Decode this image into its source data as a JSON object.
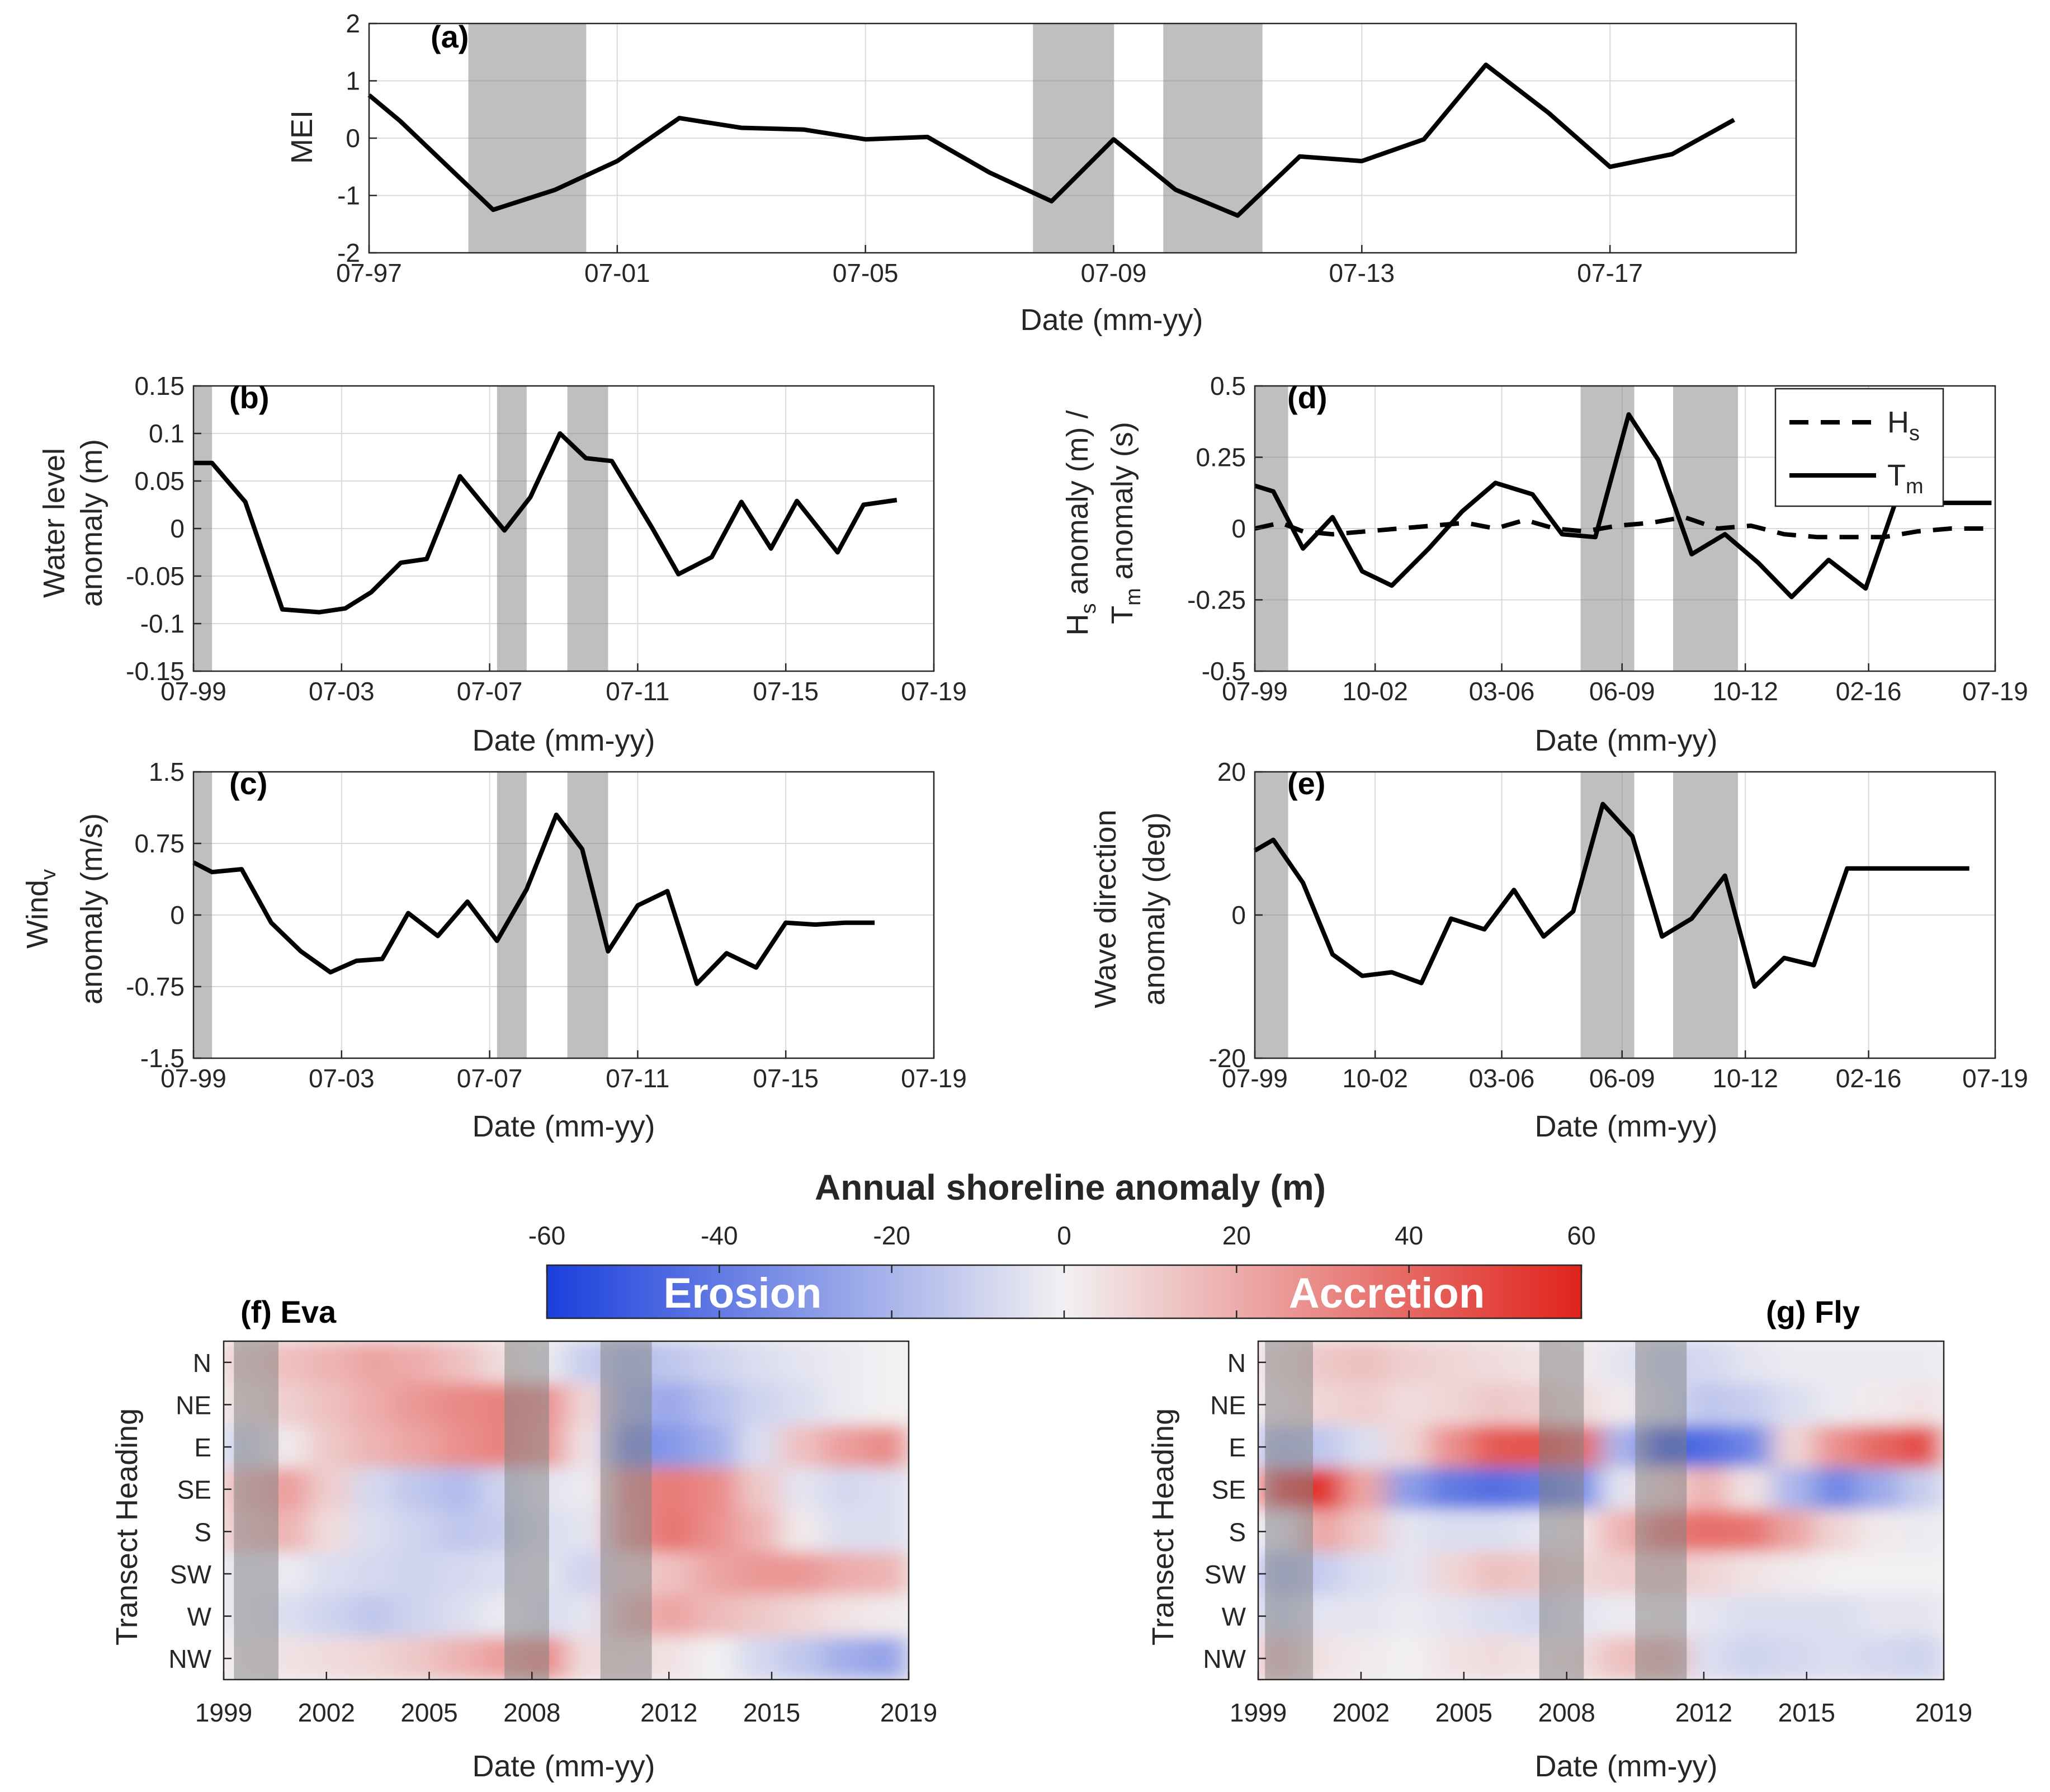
{
  "colors": {
    "line": "#000000",
    "shade": "#7f7f7f",
    "neg": "#1a3fdc",
    "pos": "#e0231b",
    "grid": "#d9d9d9"
  },
  "chart_data": [
    {
      "id": "a",
      "panel_label": "(a)",
      "type": "line",
      "title": "",
      "xlabel": "Date (mm-yy)",
      "ylabel": "MEI",
      "xlim": [
        1997.5,
        2020.5
      ],
      "ylim": [
        -2,
        2
      ],
      "xticks": [
        1997.5,
        2001.5,
        2005.5,
        2009.5,
        2013.5,
        2017.5
      ],
      "xticklabels": [
        "07-97",
        "07-01",
        "07-05",
        "07-09",
        "07-13",
        "07-17"
      ],
      "yticks": [
        -2,
        -1,
        0,
        1,
        2
      ],
      "yticklabels": [
        "-2",
        "-1",
        "0",
        "1",
        "2"
      ],
      "grid": true,
      "shade": [
        [
          1999.1,
          2001.0
        ],
        [
          2008.2,
          2009.5
        ],
        [
          2010.3,
          2011.9
        ]
      ],
      "series": [
        {
          "name": "MEI",
          "x": [
            1997.5,
            1998.0,
            1999.5,
            2000.5,
            2001.0,
            2001.5,
            2002.5,
            2003.5,
            2004.5,
            2005.5,
            2006.5,
            2007.5,
            2008.5,
            2009.5,
            2010.5,
            2011.5,
            2012.5,
            2013.5,
            2014.5,
            2015.5,
            2016.5,
            2017.5,
            2018.5,
            2019.5
          ],
          "y": [
            0.75,
            0.3,
            -1.25,
            -0.9,
            -0.65,
            -0.4,
            0.35,
            0.18,
            0.15,
            -0.02,
            0.02,
            -0.6,
            -1.1,
            -0.02,
            -0.9,
            -1.35,
            -0.32,
            -0.4,
            -0.02,
            1.28,
            0.45,
            -0.5,
            -0.28,
            0.32
          ]
        }
      ]
    },
    {
      "id": "b",
      "panel_label": "(b)",
      "type": "line",
      "title": "",
      "xlabel": "Date (mm-yy)",
      "ylabel": [
        "Water level",
        "anomaly (m)"
      ],
      "xlim": [
        1999.5,
        2019.5
      ],
      "ylim": [
        -0.15,
        0.15
      ],
      "xticks": [
        1999.5,
        2003.5,
        2007.5,
        2011.5,
        2015.5,
        2019.5
      ],
      "xticklabels": [
        "07-99",
        "07-03",
        "07-07",
        "07-11",
        "07-15",
        "07-19"
      ],
      "yticks": [
        -0.15,
        -0.1,
        -0.05,
        0,
        0.05,
        0.1,
        0.15
      ],
      "yticklabels": [
        "-0.15",
        "-0.1",
        "-0.05",
        "0",
        "0.05",
        "0.1",
        "0.15"
      ],
      "grid": true,
      "shade": [
        [
          1999.5,
          2000.0
        ],
        [
          2007.7,
          2008.5
        ],
        [
          2009.6,
          2010.7
        ]
      ],
      "series": [
        {
          "name": "Water level anomaly",
          "x": [
            1999.5,
            2000.0,
            2000.9,
            2001.9,
            2002.9,
            2003.6,
            2004.3,
            2005.1,
            2005.8,
            2006.7,
            2007.9,
            2008.6,
            2009.4,
            2010.1,
            2010.8,
            2011.9,
            2012.6,
            2013.5,
            2014.3,
            2015.1,
            2015.8,
            2016.9,
            2017.6,
            2018.5
          ],
          "y": [
            0.069,
            0.069,
            0.028,
            -0.085,
            -0.088,
            -0.084,
            -0.067,
            -0.036,
            -0.032,
            0.055,
            -0.002,
            0.033,
            0.1,
            0.074,
            0.071,
            0.0,
            -0.048,
            -0.03,
            0.028,
            -0.021,
            0.029,
            -0.025,
            0.025,
            0.03
          ]
        }
      ]
    },
    {
      "id": "c",
      "panel_label": "(c)",
      "type": "line",
      "title": "",
      "xlabel": "Date (mm-yy)",
      "ylabel": [
        "Wind",
        "v",
        "anomaly (m/s)"
      ],
      "xlim": [
        1999.5,
        2019.5
      ],
      "ylim": [
        -1.5,
        1.5
      ],
      "xticks": [
        1999.5,
        2003.5,
        2007.5,
        2011.5,
        2015.5,
        2019.5
      ],
      "xticklabels": [
        "07-99",
        "07-03",
        "07-07",
        "07-11",
        "07-15",
        "07-19"
      ],
      "yticks": [
        -1.5,
        -0.75,
        0,
        0.75,
        1.5
      ],
      "yticklabels": [
        "-1.5",
        "-0.75",
        "0",
        "0.75",
        "1.5"
      ],
      "grid": true,
      "shade": [
        [
          1999.5,
          2000.0
        ],
        [
          2007.7,
          2008.5
        ],
        [
          2009.6,
          2010.7
        ]
      ],
      "series": [
        {
          "name": "Wind v anomaly",
          "x": [
            1999.5,
            2000.0,
            2000.8,
            2001.6,
            2002.4,
            2003.2,
            2003.9,
            2004.6,
            2005.3,
            2006.1,
            2006.9,
            2007.7,
            2008.5,
            2009.3,
            2010.0,
            2010.7,
            2011.5,
            2012.3,
            2013.1,
            2013.9,
            2014.7,
            2015.5,
            2016.3,
            2017.1,
            2017.9
          ],
          "y": [
            0.55,
            0.45,
            0.48,
            -0.08,
            -0.38,
            -0.6,
            -0.48,
            -0.46,
            0.02,
            -0.22,
            0.14,
            -0.27,
            0.27,
            1.05,
            0.69,
            -0.38,
            0.1,
            0.25,
            -0.72,
            -0.4,
            -0.55,
            -0.08,
            -0.1,
            -0.08,
            -0.08
          ]
        }
      ]
    },
    {
      "id": "d",
      "panel_label": "(d)",
      "type": "line",
      "title": "",
      "xlabel": "Date (mm-yy)",
      "ylabel": [
        "H",
        "s",
        " anomaly (m) /",
        "T",
        "m",
        " anomaly (s)"
      ],
      "xlim": [
        1999.5,
        2019.5
      ],
      "ylim": [
        -0.5,
        0.5
      ],
      "xticks": [
        1999.5,
        2002.75,
        2006.17,
        2009.42,
        2012.75,
        2016.08,
        2019.5
      ],
      "xticklabels": [
        "07-99",
        "10-02",
        "03-06",
        "06-09",
        "10-12",
        "02-16",
        "07-19"
      ],
      "yticks": [
        -0.5,
        -0.25,
        0,
        0.25,
        0.5
      ],
      "yticklabels": [
        "-0.5",
        "-0.25",
        "0",
        "0.25",
        "0.5"
      ],
      "grid": true,
      "shade": [
        [
          1999.5,
          2000.4
        ],
        [
          2008.3,
          2009.75
        ],
        [
          2010.8,
          2012.55
        ]
      ],
      "legend": {
        "position": "top-right",
        "entries": [
          {
            "name": "H",
            "sub": "s",
            "style": "dashed"
          },
          {
            "name": "T",
            "sub": "m",
            "style": "solid"
          }
        ]
      },
      "series": [
        {
          "name": "Hs",
          "style": "dashed",
          "x": [
            1999.5,
            2000.2,
            2000.8,
            2001.6,
            2002.5,
            2003.4,
            2004.3,
            2005.2,
            2006.0,
            2006.8,
            2007.6,
            2008.4,
            2009.3,
            2010.2,
            2011.1,
            2012.0,
            2012.9,
            2013.8,
            2014.7,
            2015.6,
            2016.5,
            2017.4,
            2018.3,
            2019.2
          ],
          "y": [
            0.0,
            0.02,
            -0.01,
            -0.02,
            -0.01,
            0.0,
            0.01,
            0.02,
            0.0,
            0.03,
            0.0,
            -0.01,
            0.01,
            0.02,
            0.04,
            0.0,
            0.01,
            -0.02,
            -0.03,
            -0.03,
            -0.03,
            -0.01,
            0.0,
            0.0
          ]
        },
        {
          "name": "Tm",
          "style": "solid",
          "x": [
            1999.5,
            2000.0,
            2000.8,
            2001.6,
            2002.4,
            2003.2,
            2004.2,
            2005.1,
            2006.0,
            2007.0,
            2007.8,
            2008.7,
            2009.6,
            2010.4,
            2011.3,
            2012.2,
            2013.1,
            2014.0,
            2015.0,
            2016.0,
            2016.8,
            2017.6,
            2018.5,
            2019.4
          ],
          "y": [
            0.15,
            0.13,
            -0.07,
            0.04,
            -0.15,
            -0.2,
            -0.07,
            0.06,
            0.16,
            0.12,
            -0.02,
            -0.03,
            0.4,
            0.24,
            -0.09,
            -0.02,
            -0.12,
            -0.24,
            -0.11,
            -0.21,
            0.09,
            0.09,
            0.09,
            0.09
          ]
        }
      ]
    },
    {
      "id": "e",
      "panel_label": "(e)",
      "type": "line",
      "title": "",
      "xlabel": "Date (mm-yy)",
      "ylabel": [
        "Wave direction",
        "anomaly (deg)"
      ],
      "xlim": [
        1999.5,
        2019.5
      ],
      "ylim": [
        -20,
        20
      ],
      "xticks": [
        1999.5,
        2002.75,
        2006.17,
        2009.42,
        2012.75,
        2016.08,
        2019.5
      ],
      "xticklabels": [
        "07-99",
        "10-02",
        "03-06",
        "06-09",
        "10-12",
        "02-16",
        "07-19"
      ],
      "yticks": [
        -20,
        0,
        20
      ],
      "yticklabels": [
        "-20",
        "0",
        "20"
      ],
      "grid": true,
      "shade": [
        [
          1999.5,
          2000.4
        ],
        [
          2008.3,
          2009.75
        ],
        [
          2010.8,
          2012.55
        ]
      ],
      "series": [
        {
          "name": "Wave direction anomaly",
          "x": [
            1999.5,
            2000.0,
            2000.8,
            2001.6,
            2002.4,
            2003.2,
            2004.0,
            2004.8,
            2005.7,
            2006.5,
            2007.3,
            2008.1,
            2008.9,
            2009.7,
            2010.5,
            2011.3,
            2012.2,
            2013.0,
            2013.8,
            2014.6,
            2015.5,
            2016.3,
            2017.1,
            2017.9,
            2018.8
          ],
          "y": [
            9,
            10.5,
            4.5,
            -5.5,
            -8.5,
            -8,
            -9.5,
            -0.5,
            -2,
            3.5,
            -3,
            0.5,
            15.5,
            11,
            -3,
            -0.5,
            5.5,
            -10,
            -6,
            -7,
            6.5,
            6.5,
            6.5,
            6.5,
            6.5
          ]
        }
      ]
    },
    {
      "id": "f",
      "panel_label": "(f) Eva",
      "type": "heatmap",
      "xlabel": "Date (mm-yy)",
      "ylabel": "Transect Heading",
      "xlim": [
        1999,
        2019
      ],
      "xticks": [
        1999,
        2002,
        2005,
        2008,
        2012,
        2015,
        2019
      ],
      "xticklabels": [
        "1999",
        "2002",
        "2005",
        "2008",
        "2012",
        "2015",
        "2019"
      ],
      "yticklabels": [
        "N",
        "NE",
        "E",
        "SE",
        "S",
        "SW",
        "W",
        "NW"
      ],
      "shade": [
        [
          1999.3,
          2000.6
        ],
        [
          2007.2,
          2008.5
        ],
        [
          2010.0,
          2011.5
        ]
      ],
      "clim": [
        -60,
        60
      ],
      "rows": [
        [
          10,
          14,
          18,
          22,
          20,
          14,
          6,
          -2,
          -12,
          -18,
          -14,
          -10,
          -6,
          -4,
          -2,
          0
        ],
        [
          6,
          10,
          14,
          20,
          26,
          30,
          32,
          28,
          8,
          -22,
          -24,
          -16,
          -10,
          -6,
          -2,
          0
        ],
        [
          -10,
          2,
          12,
          18,
          22,
          28,
          32,
          26,
          4,
          -34,
          -30,
          -22,
          -6,
          14,
          24,
          30
        ],
        [
          18,
          24,
          10,
          -8,
          -14,
          -18,
          -10,
          -4,
          -2,
          30,
          34,
          30,
          12,
          -4,
          -8,
          -6
        ],
        [
          14,
          18,
          6,
          -6,
          -10,
          -14,
          -12,
          -6,
          -4,
          28,
          36,
          28,
          18,
          2,
          -6,
          -6
        ],
        [
          -4,
          -2,
          -6,
          -8,
          -10,
          -8,
          -6,
          -4,
          -10,
          10,
          14,
          22,
          26,
          26,
          20,
          18
        ],
        [
          -4,
          -6,
          -10,
          -14,
          -10,
          -6,
          -2,
          -6,
          -4,
          18,
          22,
          16,
          12,
          8,
          4,
          2
        ],
        [
          2,
          4,
          6,
          8,
          12,
          18,
          24,
          30,
          6,
          6,
          4,
          0,
          -8,
          -14,
          -22,
          -26
        ]
      ]
    },
    {
      "id": "g",
      "panel_label": "(g) Fly",
      "type": "heatmap",
      "xlabel": "Date (mm-yy)",
      "ylabel": "Transect Heading",
      "xlim": [
        1999,
        2019
      ],
      "xticks": [
        1999,
        2002,
        2005,
        2008,
        2012,
        2015,
        2019
      ],
      "xticklabels": [
        "1999",
        "2002",
        "2005",
        "2008",
        "2012",
        "2015",
        "2019"
      ],
      "yticklabels": [
        "N",
        "NE",
        "E",
        "SE",
        "S",
        "SW",
        "W",
        "NW"
      ],
      "shade": [
        [
          1999.2,
          2000.6
        ],
        [
          2007.2,
          2008.5
        ],
        [
          2010.0,
          2011.5
        ]
      ],
      "clim": [
        -60,
        60
      ],
      "rows": [
        [
          6,
          12,
          14,
          10,
          8,
          6,
          4,
          2,
          -4,
          -10,
          -8,
          -4,
          -2,
          -2,
          -2,
          -2
        ],
        [
          4,
          8,
          10,
          6,
          8,
          12,
          10,
          6,
          2,
          -8,
          -14,
          -12,
          -6,
          -2,
          2,
          4
        ],
        [
          -18,
          -14,
          -6,
          8,
          28,
          44,
          46,
          40,
          -20,
          -50,
          -44,
          -36,
          8,
          28,
          40,
          48
        ],
        [
          48,
          56,
          22,
          -28,
          -40,
          -44,
          -40,
          -34,
          -4,
          10,
          18,
          4,
          -20,
          -36,
          -24,
          -12
        ],
        [
          -4,
          22,
          12,
          -4,
          -6,
          -6,
          -4,
          4,
          18,
          34,
          38,
          36,
          22,
          8,
          2,
          -2
        ],
        [
          -18,
          -12,
          -6,
          -4,
          8,
          14,
          12,
          8,
          10,
          12,
          8,
          4,
          2,
          0,
          0,
          0
        ],
        [
          -10,
          -4,
          -4,
          -2,
          -4,
          -6,
          -8,
          -4,
          -2,
          2,
          -4,
          -6,
          -6,
          -6,
          -4,
          -4
        ],
        [
          14,
          4,
          2,
          0,
          4,
          6,
          4,
          6,
          14,
          18,
          -6,
          -10,
          -8,
          -6,
          -8,
          -10
        ]
      ]
    }
  ],
  "colorbar": {
    "title": "Annual shoreline anomaly (m)",
    "ticks": [
      -60,
      -40,
      -20,
      0,
      20,
      40,
      60
    ],
    "ticklabels": [
      "-60",
      "-40",
      "-20",
      "0",
      "20",
      "40",
      "60"
    ],
    "left_word": "Erosion",
    "right_word": "Accretion"
  }
}
